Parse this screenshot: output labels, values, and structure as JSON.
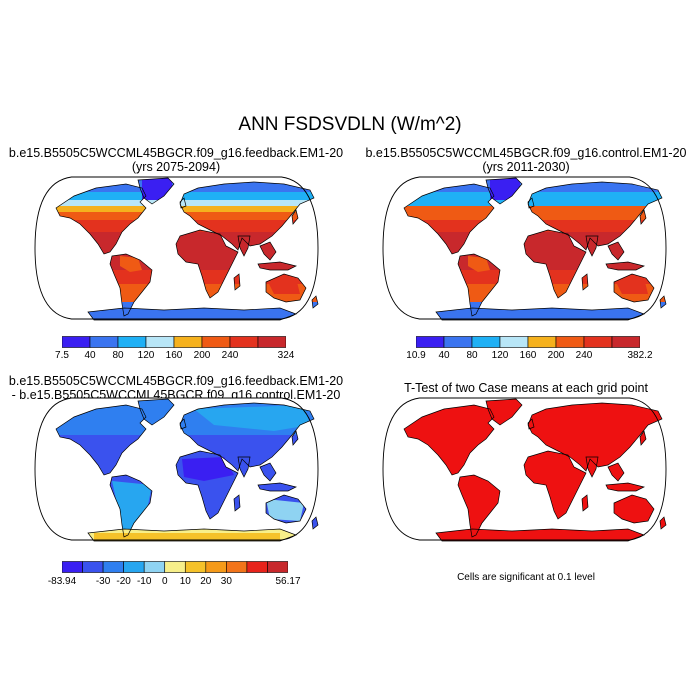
{
  "figure": {
    "title": "ANN FSDSVDLN (W/m^2)"
  },
  "panels": [
    {
      "line1": "b.e15.B5505C5WCCML45BGCR.f09_g16.feedback.EM1-20",
      "line2": "(yrs 2075-2094)",
      "map_style": "absolute",
      "colorbar": {
        "colors": [
          "#3a1ff2",
          "#3a74f0",
          "#1fb0f5",
          "#b8e6f7",
          "#f5b11d",
          "#ef5a14",
          "#e3321e",
          "#c8282c"
        ],
        "labels": [
          "7.5",
          "40",
          "80",
          "120",
          "160",
          "200",
          "240",
          "324"
        ]
      }
    },
    {
      "line1": "b.e15.B5505C5WCCML45BGCR.f09_g16.control.EM1-20",
      "line2": "(yrs 2011-2030)",
      "map_style": "absolute",
      "colorbar": {
        "colors": [
          "#3a1ff2",
          "#3a74f0",
          "#1fb0f5",
          "#b8e6f7",
          "#f5b11d",
          "#ef5a14",
          "#e3321e",
          "#c8282c"
        ],
        "labels": [
          "10.9",
          "40",
          "80",
          "120",
          "160",
          "200",
          "240",
          "382.2"
        ]
      }
    },
    {
      "line1": "b.e15.B5505C5WCCML45BGCR.f09_g16.feedback.EM1-20",
      "line2": "- b.e15.B5505C5WCCML45BGCR.f09_g16.control.EM1-20",
      "map_style": "difference",
      "colorbar": {
        "colors": [
          "#3a1ff2",
          "#3a52ee",
          "#2f7ff0",
          "#27a6f0",
          "#8fd3f2",
          "#f7ef8a",
          "#f5c22a",
          "#f59a19",
          "#f2741a",
          "#e8231b",
          "#c8282c"
        ],
        "labels": [
          "-83.94",
          "",
          "-30",
          "-20",
          "-10",
          "0",
          "10",
          "20",
          "30",
          "",
          "56.17"
        ]
      }
    },
    {
      "line1": "T-Test of two Case means at each grid point",
      "line2": "",
      "map_style": "ttest",
      "note": "Cells are significant at 0.1 level"
    }
  ]
}
